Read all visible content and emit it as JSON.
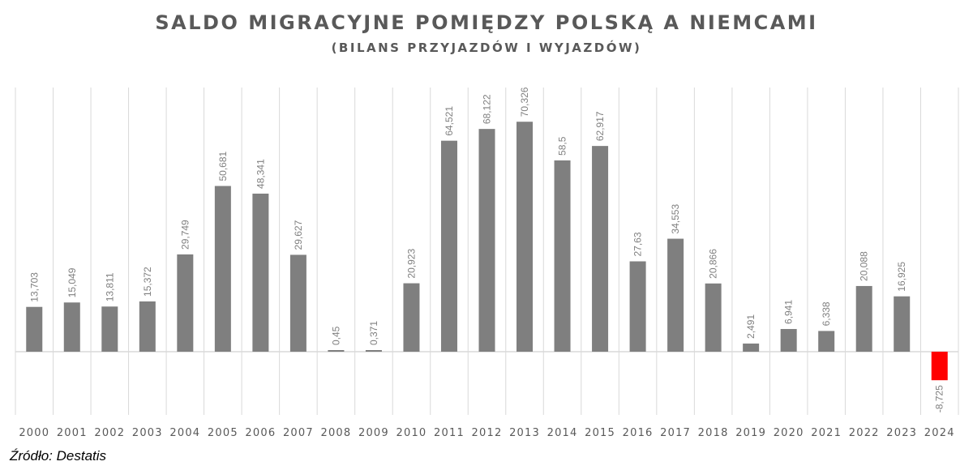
{
  "header": {
    "title": "SALDO MIGRACYJNE POMIĘDZY POLSKĄ A NIEMCAMI",
    "subtitle": "(BILANS PRZYJAZDÓW I WYJAZDÓW)"
  },
  "source": "Źródło: Destatis",
  "colors": {
    "positive": "#7f7f7f",
    "negative": "#ff0000",
    "grid": "#d9d9d9",
    "label": "#7f7f7f",
    "axis_text": "#595959"
  },
  "chart_data": {
    "type": "bar",
    "title": "SALDO MIGRACYJNE POMIĘDZY POLSKĄ A NIEMCAMI",
    "subtitle": "(BILANS PRZYJAZDÓW I WYJAZDÓW)",
    "categories": [
      "2000",
      "2001",
      "2002",
      "2003",
      "2004",
      "2005",
      "2006",
      "2007",
      "2008",
      "2009",
      "2010",
      "2011",
      "2012",
      "2013",
      "2014",
      "2015",
      "2016",
      "2017",
      "2018",
      "2019",
      "2020",
      "2021",
      "2022",
      "2023",
      "2024"
    ],
    "values": [
      13.703,
      15.049,
      13.811,
      15.372,
      29.749,
      50.681,
      48.341,
      29.627,
      0.45,
      0.371,
      20.923,
      64.521,
      68.122,
      70.326,
      58.5,
      62.917,
      27.63,
      34.553,
      20.866,
      2.491,
      6.941,
      6.338,
      20.088,
      16.925,
      -8.725
    ],
    "data_labels": [
      "13,703",
      "15,049",
      "13,811",
      "15,372",
      "29,749",
      "50,681",
      "48,341",
      "29,627",
      "0,45",
      "0,371",
      "20,923",
      "64,521",
      "68,122",
      "70,326",
      "58,5",
      "62,917",
      "27,63",
      "34,553",
      "20,866",
      "2,491",
      "6,941",
      "6,338",
      "20,088",
      "16,925",
      "-8,725"
    ],
    "xlabel": "",
    "ylabel": "",
    "ylim": [
      -20,
      80
    ],
    "grid": "vertical"
  }
}
